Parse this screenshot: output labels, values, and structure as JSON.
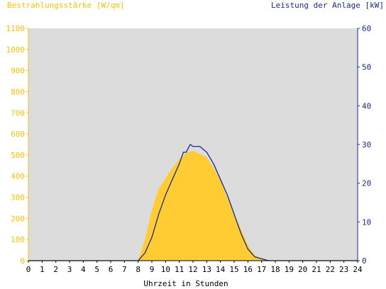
{
  "chart_data": {
    "type": "area",
    "ylabel_left": "Bestrahlungsstärke [W/qm]",
    "ylabel_right": "Leistung der Anlage [kW]",
    "xlabel": "Uhrzeit in Stunden",
    "xlim": [
      0,
      24
    ],
    "ylim_left": [
      0,
      1100
    ],
    "ylim_right": [
      0,
      60
    ],
    "x_ticks": [
      "0",
      "1",
      "2",
      "3",
      "4",
      "5",
      "6",
      "7",
      "8",
      "9",
      "10",
      "11",
      "12",
      "13",
      "14",
      "15",
      "16",
      "17",
      "18",
      "19",
      "20",
      "21",
      "22",
      "23",
      "24"
    ],
    "y_left_ticks": [
      "0",
      "100",
      "200",
      "300",
      "400",
      "500",
      "600",
      "700",
      "800",
      "900",
      "1000",
      "1100"
    ],
    "y_right_ticks": [
      "0",
      "10",
      "20",
      "30",
      "40",
      "50",
      "60"
    ],
    "grid": false,
    "colors": {
      "irradiance": "#ffcc33",
      "power": "#1a2b8a",
      "plot_bg": "#dcdcdc",
      "left_axis": "#f4c20d",
      "right_axis": "#1a2b8a"
    },
    "series": [
      {
        "name": "Bestrahlungsstärke [W/qm]",
        "axis": "left",
        "kind": "area",
        "x": [
          8.0,
          8.5,
          9.0,
          9.5,
          10.0,
          10.5,
          11.0,
          11.5,
          12.0,
          12.5,
          13.0,
          13.5,
          14.0,
          14.5,
          15.0,
          15.5,
          16.0,
          16.5,
          17.0,
          17.5
        ],
        "values": [
          0,
          100,
          240,
          340,
          390,
          440,
          480,
          510,
          520,
          505,
          490,
          440,
          380,
          300,
          220,
          150,
          75,
          25,
          8,
          0
        ]
      },
      {
        "name": "Leistung der Anlage [kW]",
        "axis": "right",
        "kind": "line",
        "x": [
          8.0,
          8.5,
          9.0,
          9.5,
          10.0,
          10.5,
          11.0,
          11.3,
          11.5,
          11.8,
          12.0,
          12.5,
          13.0,
          13.5,
          14.0,
          14.5,
          15.0,
          15.5,
          16.0,
          16.5,
          17.0,
          17.5
        ],
        "values": [
          0,
          2,
          6,
          12,
          17,
          21,
          25,
          28,
          28,
          30,
          29.5,
          29.5,
          28,
          25,
          21,
          17,
          12,
          7,
          3,
          1,
          0.5,
          0
        ]
      }
    ]
  }
}
